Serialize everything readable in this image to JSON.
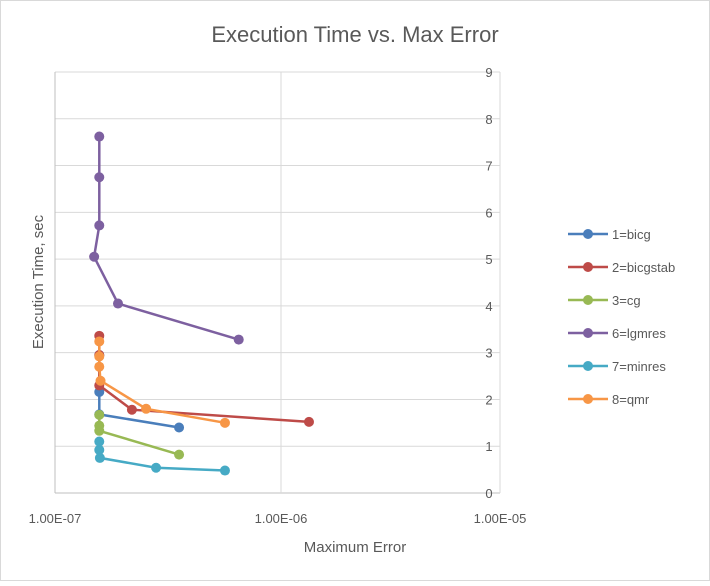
{
  "chart_data": {
    "type": "scatter",
    "title": "Execution Time vs. Max Error",
    "xlabel": "Maximum Error",
    "ylabel": "Execution Time, sec",
    "xscale": "log",
    "xlim": [
      1e-07,
      1e-05
    ],
    "ylim": [
      0,
      9
    ],
    "xticks": [
      "1.00E-07",
      "1.00E-06",
      "1.00E-05"
    ],
    "yticks": [
      "0",
      "1",
      "2",
      "3",
      "4",
      "5",
      "6",
      "7",
      "8",
      "9"
    ],
    "grid": true,
    "legend": "right",
    "series": [
      {
        "name": "1=bicg",
        "color": "#4a7ebb",
        "x": [
          1.57e-07,
          1.57e-07,
          1.57e-07,
          3.54e-07
        ],
        "y": [
          2.95,
          2.16,
          1.68,
          1.4
        ]
      },
      {
        "name": "2=bicgstab",
        "color": "#be4b48",
        "x": [
          1.57e-07,
          1.57e-07,
          1.57e-07,
          2.19e-07,
          1.33e-06
        ],
        "y": [
          3.36,
          2.95,
          2.3,
          1.78,
          1.52
        ]
      },
      {
        "name": "3=cg",
        "color": "#98b954",
        "x": [
          1.57e-07,
          1.57e-07,
          1.57e-07,
          3.54e-07
        ],
        "y": [
          1.67,
          1.44,
          1.33,
          0.82
        ]
      },
      {
        "name": "6=lgmres",
        "color": "#7d60a0",
        "x": [
          1.57e-07,
          1.57e-07,
          1.57e-07,
          1.49e-07,
          1.9e-07,
          6.5e-07
        ],
        "y": [
          7.62,
          6.75,
          5.72,
          5.05,
          4.05,
          3.28
        ]
      },
      {
        "name": "7=minres",
        "color": "#46aac5",
        "x": [
          1.57e-07,
          1.57e-07,
          1.58e-07,
          2.8e-07,
          5.65e-07
        ],
        "y": [
          1.1,
          0.92,
          0.75,
          0.54,
          0.48
        ]
      },
      {
        "name": "8=qmr",
        "color": "#f79646",
        "x": [
          1.57e-07,
          1.57e-07,
          1.57e-07,
          1.59e-07,
          2.53e-07,
          5.65e-07
        ],
        "y": [
          3.24,
          2.92,
          2.7,
          2.4,
          1.8,
          1.5
        ]
      }
    ]
  }
}
